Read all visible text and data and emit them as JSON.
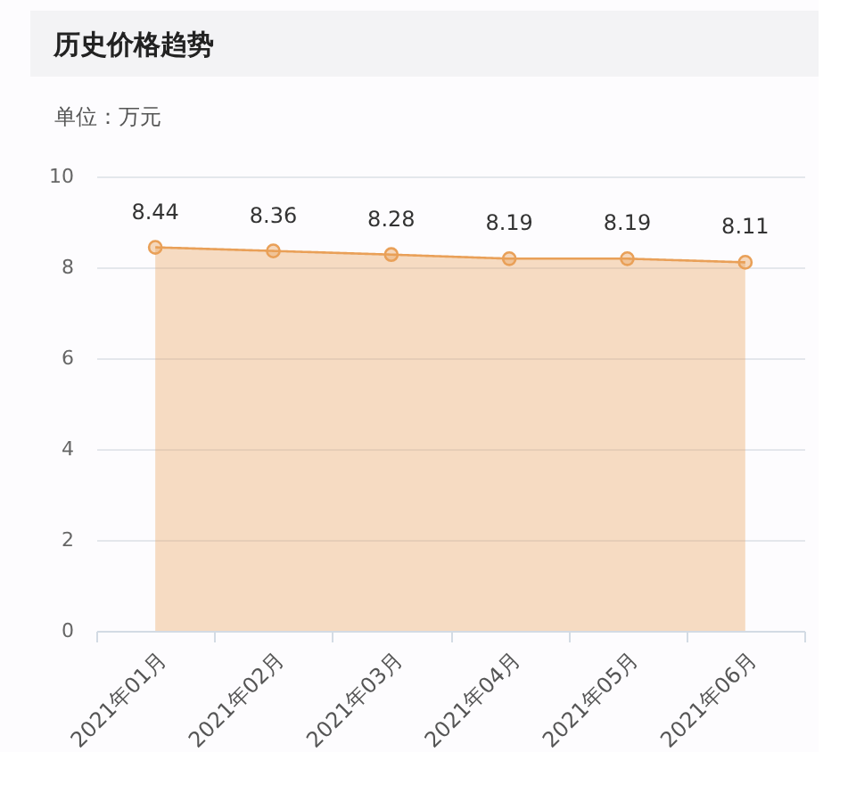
{
  "chart_data": {
    "type": "area",
    "title": "历史价格趋势",
    "ylabel": "单位：万元",
    "categories": [
      "2021年01月",
      "2021年02月",
      "2021年03月",
      "2021年04月",
      "2021年05月",
      "2021年06月"
    ],
    "values": [
      8.44,
      8.36,
      8.28,
      8.19,
      8.19,
      8.11
    ],
    "color": "#e9a058",
    "ylim": [
      0,
      10
    ],
    "yticks": [
      0,
      2,
      4,
      6,
      8,
      10
    ],
    "grid": "y",
    "marker": "circle",
    "line_style": "solid",
    "data_labels": true
  }
}
